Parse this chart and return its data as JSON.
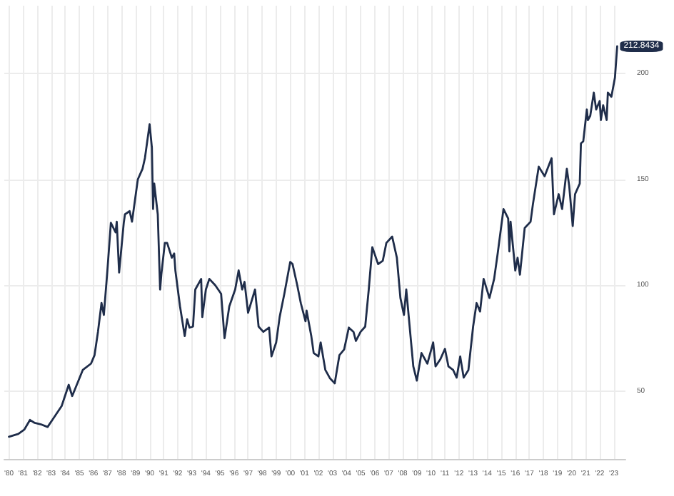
{
  "chart_data": {
    "type": "line",
    "xlim": [
      "1979-09",
      "2023-11"
    ],
    "ylim": [
      18,
      232
    ],
    "yticks": [
      50,
      100,
      150,
      200
    ],
    "xticks": [
      {
        "value": "1980-01",
        "label": "'80"
      },
      {
        "value": "1981-01",
        "label": "'81"
      },
      {
        "value": "1982-01",
        "label": "'82"
      },
      {
        "value": "1983-01",
        "label": "'83"
      },
      {
        "value": "1984-01",
        "label": "'84"
      },
      {
        "value": "1985-01",
        "label": "'85"
      },
      {
        "value": "1986-01",
        "label": "'86"
      },
      {
        "value": "1987-01",
        "label": "'87"
      },
      {
        "value": "1988-01",
        "label": "'88"
      },
      {
        "value": "1989-01",
        "label": "'89"
      },
      {
        "value": "1990-01",
        "label": "'90"
      },
      {
        "value": "1991-01",
        "label": "'91"
      },
      {
        "value": "1992-01",
        "label": "'92"
      },
      {
        "value": "1993-01",
        "label": "'93"
      },
      {
        "value": "1994-01",
        "label": "'94"
      },
      {
        "value": "1995-01",
        "label": "'95"
      },
      {
        "value": "1996-01",
        "label": "'96"
      },
      {
        "value": "1997-01",
        "label": "'97"
      },
      {
        "value": "1998-01",
        "label": "'98"
      },
      {
        "value": "1999-01",
        "label": "'99"
      },
      {
        "value": "2000-01",
        "label": "'00"
      },
      {
        "value": "2001-01",
        "label": "'01"
      },
      {
        "value": "2002-01",
        "label": "'02"
      },
      {
        "value": "2003-01",
        "label": "'03"
      },
      {
        "value": "2004-01",
        "label": "'04"
      },
      {
        "value": "2005-01",
        "label": "'05"
      },
      {
        "value": "2006-01",
        "label": "'06"
      },
      {
        "value": "2007-01",
        "label": "'07"
      },
      {
        "value": "2008-01",
        "label": "'08"
      },
      {
        "value": "2009-01",
        "label": "'09"
      },
      {
        "value": "2010-01",
        "label": "'10"
      },
      {
        "value": "2011-01",
        "label": "'11"
      },
      {
        "value": "2012-01",
        "label": "'12"
      },
      {
        "value": "2013-01",
        "label": "'13"
      },
      {
        "value": "2014-01",
        "label": "'14"
      },
      {
        "value": "2015-01",
        "label": "'15"
      },
      {
        "value": "2016-01",
        "label": "'16"
      },
      {
        "value": "2017-01",
        "label": "'17"
      },
      {
        "value": "2018-01",
        "label": "'18"
      },
      {
        "value": "2019-01",
        "label": "'19"
      },
      {
        "value": "2020-01",
        "label": "'20"
      },
      {
        "value": "2021-01",
        "label": "'21"
      },
      {
        "value": "2022-01",
        "label": "'22"
      },
      {
        "value": "2023-01",
        "label": "'23"
      }
    ],
    "grid": true,
    "marker": "none",
    "line_style": "solid",
    "annotations": [
      {
        "text": "212.8434",
        "x": "2023-04",
        "y": 212.8434
      }
    ],
    "series": [
      {
        "color": "#1f2d4a",
        "x": [
          "1980-01",
          "1980-09",
          "1981-02",
          "1981-07",
          "1981-11",
          "1982-04",
          "1982-10",
          "1983-02",
          "1983-10",
          "1984-04",
          "1984-07",
          "1985-04",
          "1985-11",
          "1986-02",
          "1986-05",
          "1986-08",
          "1986-10",
          "1987-01",
          "1987-04",
          "1987-08",
          "1987-09",
          "1987-11",
          "1988-03",
          "1988-04",
          "1988-08",
          "1988-10",
          "1989-03",
          "1989-07",
          "1989-09",
          "1990-01",
          "1990-03",
          "1990-04",
          "1990-05",
          "1990-08",
          "1990-10",
          "1990-11",
          "1991-02",
          "1991-04",
          "1991-08",
          "1991-10",
          "1991-11",
          "1992-03",
          "1992-07",
          "1992-09",
          "1992-11",
          "1993-02",
          "1993-04",
          "1993-09",
          "1993-10",
          "1994-01",
          "1994-04",
          "1994-09",
          "1995-02",
          "1995-05",
          "1995-09",
          "1996-02",
          "1996-05",
          "1996-08",
          "1996-10",
          "1997-01",
          "1997-07",
          "1997-10",
          "1998-02",
          "1998-07",
          "1998-09",
          "1999-01",
          "1999-04",
          "1999-08",
          "2000-01",
          "2000-03",
          "2000-07",
          "2000-10",
          "2001-02",
          "2001-03",
          "2001-07",
          "2001-09",
          "2002-01",
          "2002-03",
          "2002-07",
          "2002-11",
          "2003-03",
          "2003-07",
          "2003-11",
          "2004-03",
          "2004-07",
          "2004-09",
          "2005-01",
          "2005-05",
          "2005-08",
          "2005-11",
          "2006-04",
          "2006-08",
          "2006-11",
          "2007-04",
          "2007-08",
          "2007-11",
          "2008-02",
          "2008-04",
          "2008-08",
          "2008-10",
          "2009-01",
          "2009-05",
          "2009-10",
          "2010-03",
          "2010-05",
          "2010-09",
          "2011-01",
          "2011-04",
          "2011-08",
          "2011-11",
          "2012-02",
          "2012-05",
          "2012-09",
          "2013-01",
          "2013-04",
          "2013-07",
          "2013-10",
          "2014-03",
          "2014-07",
          "2014-10",
          "2015-03",
          "2015-07",
          "2015-08",
          "2015-09",
          "2016-01",
          "2016-03",
          "2016-05",
          "2016-09",
          "2017-02",
          "2017-04",
          "2017-09",
          "2018-02",
          "2018-08",
          "2018-10",
          "2019-02",
          "2019-05",
          "2019-09",
          "2019-11",
          "2020-02",
          "2020-04",
          "2020-08",
          "2020-09",
          "2020-11",
          "2021-02",
          "2021-03",
          "2021-05",
          "2021-08",
          "2021-10",
          "2022-01",
          "2022-02",
          "2022-04",
          "2022-07",
          "2022-08",
          "2022-11",
          "2023-02",
          "2023-04"
        ],
        "values": [
          28.5,
          29.8,
          31.8,
          36.4,
          35,
          34.4,
          33.1,
          36.4,
          43,
          53,
          47.7,
          60,
          63,
          67,
          78,
          91.6,
          86,
          107,
          129.5,
          125,
          130,
          106,
          129.5,
          133.5,
          135,
          130,
          150,
          155,
          160,
          176,
          165,
          136,
          148,
          133.5,
          98,
          105,
          120,
          120,
          113,
          115,
          107,
          90,
          76,
          84,
          80,
          80.5,
          98,
          103,
          85,
          98,
          103,
          100,
          96,
          75,
          90,
          98,
          107,
          98,
          101.6,
          87,
          98,
          80.5,
          78,
          80,
          66.4,
          73,
          85,
          96,
          111,
          110,
          100,
          91.6,
          83,
          88,
          76,
          68,
          66.4,
          73,
          60,
          56,
          53.7,
          67,
          69.7,
          80,
          78,
          73.7,
          78,
          80.5,
          98,
          118,
          110,
          111.6,
          120,
          123,
          113,
          94,
          86,
          98,
          73.7,
          61.7,
          55,
          68,
          63,
          73,
          61.7,
          65,
          70,
          61.7,
          60,
          56.4,
          66.4,
          56.4,
          60,
          80.5,
          91.6,
          87.6,
          103,
          94,
          103,
          115,
          136,
          131.5,
          116,
          130,
          107,
          113,
          105,
          127,
          130,
          138,
          156,
          151.5,
          160,
          133.5,
          143,
          136,
          155,
          147,
          128,
          143,
          148,
          167,
          168,
          183,
          178,
          180,
          191,
          183,
          187,
          178,
          185,
          178,
          191,
          189,
          198,
          212.8434
        ]
      }
    ]
  }
}
